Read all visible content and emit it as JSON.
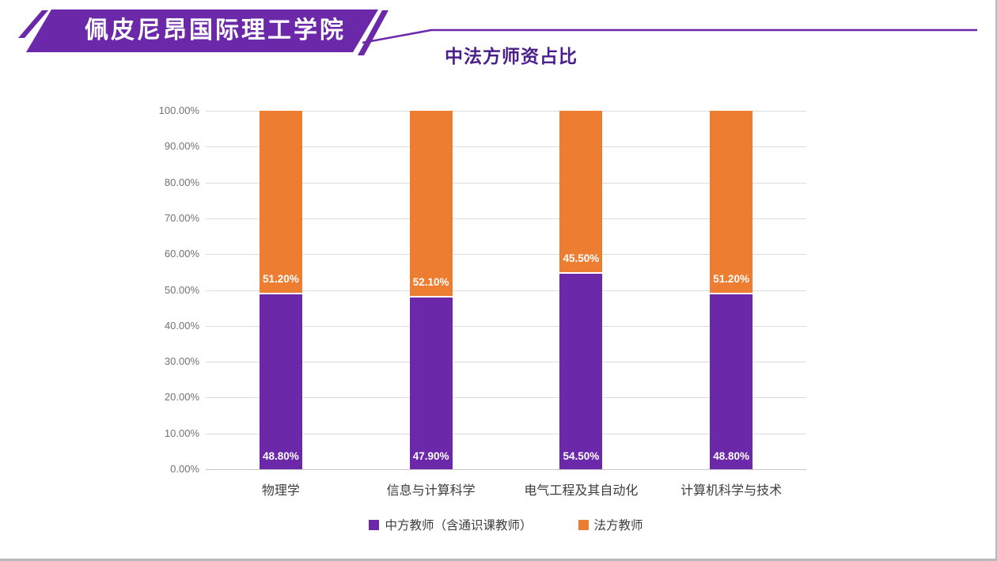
{
  "slide": {
    "banner_title": "佩皮尼昂国际理工学院",
    "accent_purple": "#6b28a8",
    "accent_orange": "#ed7d31",
    "title_color": "#4b1e8c"
  },
  "chart_data": {
    "type": "bar",
    "stacked": true,
    "title": "中法方师资占比",
    "categories": [
      "物理学",
      "信息与计算科学",
      "电气工程及其自动化",
      "计算机科学与技术"
    ],
    "series": [
      {
        "name": "中方教师（含通识课教师）",
        "color": "#6b28a8",
        "values": [
          48.8,
          47.9,
          54.5,
          48.8
        ],
        "labels": [
          "48.80%",
          "47.90%",
          "54.50%",
          "48.80%"
        ]
      },
      {
        "name": "法方教师",
        "color": "#ed7d31",
        "values": [
          51.2,
          52.1,
          45.5,
          51.2
        ],
        "labels": [
          "51.20%",
          "52.10%",
          "45.50%",
          "51.20%"
        ]
      }
    ],
    "y_axis": {
      "min": 0,
      "max": 100,
      "step": 10,
      "tick_labels": [
        "0.00%",
        "10.00%",
        "20.00%",
        "30.00%",
        "40.00%",
        "50.00%",
        "60.00%",
        "70.00%",
        "80.00%",
        "90.00%",
        "100.00%"
      ]
    },
    "grid": true,
    "legend_position": "bottom"
  }
}
